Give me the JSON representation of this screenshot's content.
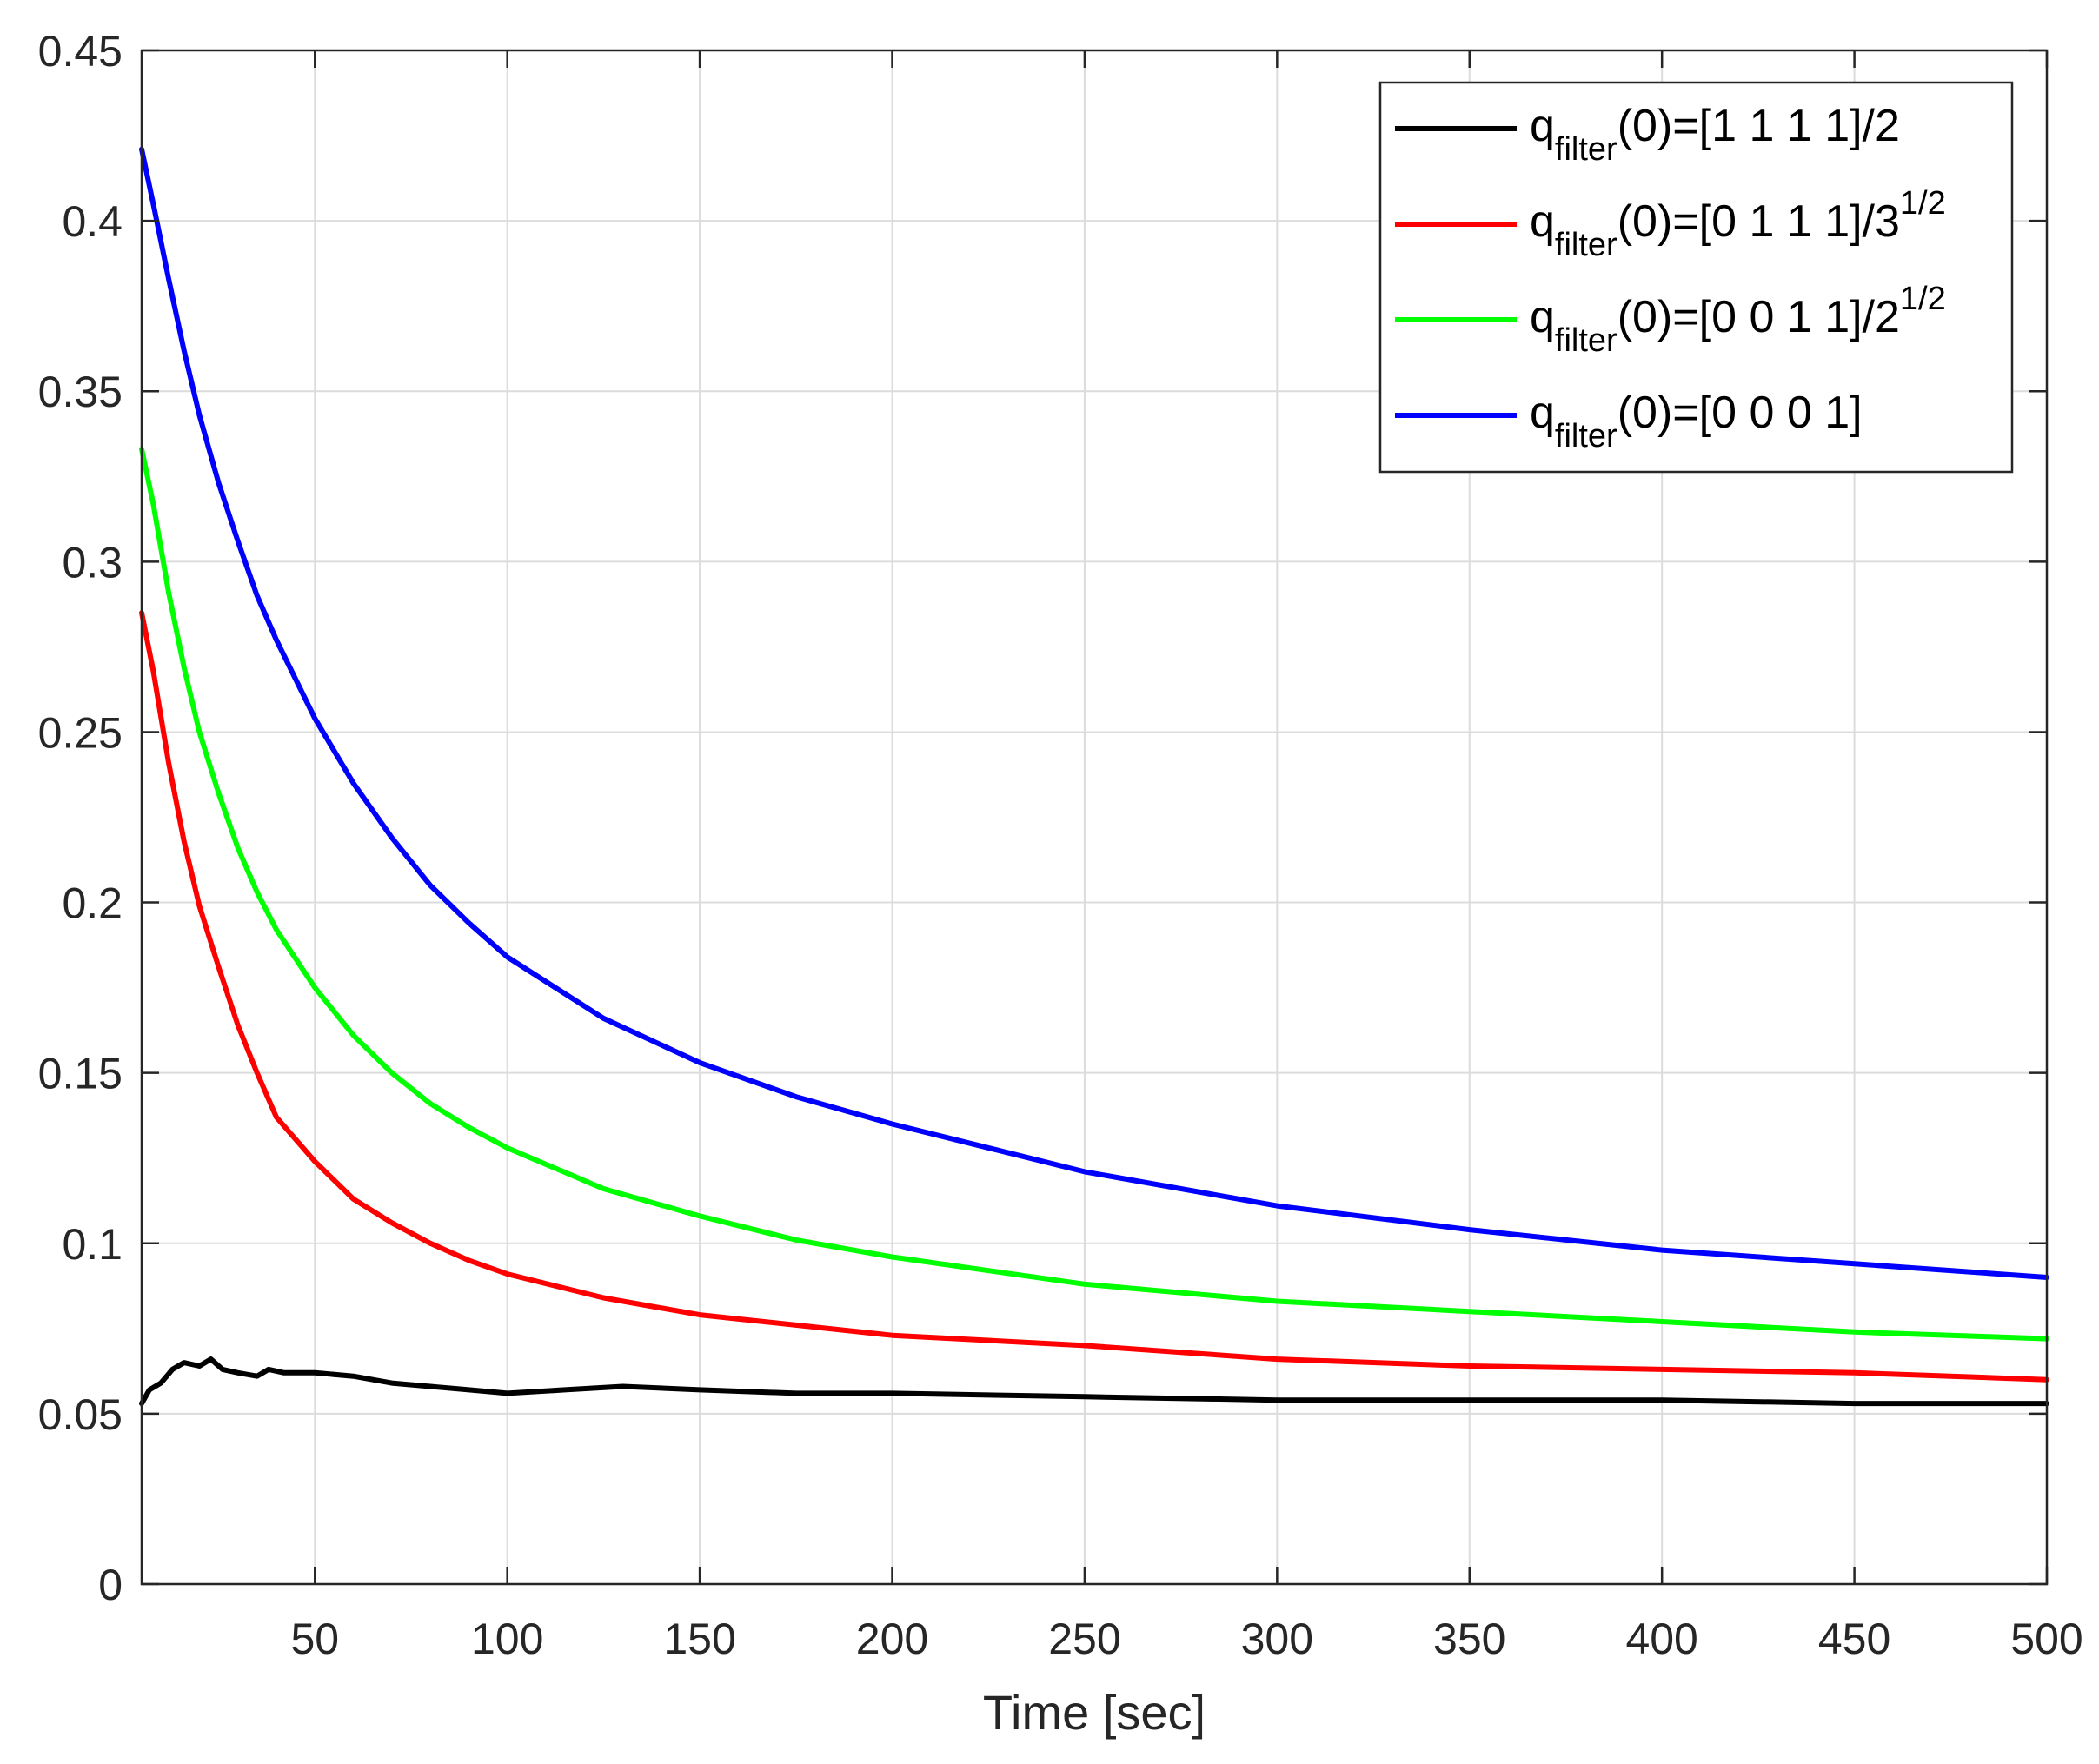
{
  "chart_data": {
    "type": "line",
    "title": "",
    "xlabel": "Time [sec]",
    "ylabel": "",
    "xlim": [
      5,
      500
    ],
    "ylim": [
      0,
      0.45
    ],
    "x_ticks": [
      50,
      100,
      150,
      200,
      250,
      300,
      350,
      400,
      450,
      500
    ],
    "y_ticks": [
      0,
      0.05,
      0.1,
      0.15,
      0.2,
      0.25,
      0.3,
      0.35,
      0.4,
      0.45
    ],
    "x_tick_labels": [
      "50",
      "100",
      "150",
      "200",
      "250",
      "300",
      "350",
      "400",
      "450",
      "500"
    ],
    "y_tick_labels": [
      "0",
      "0.05",
      "0.1",
      "0.15",
      "0.2",
      "0.25",
      "0.3",
      "0.35",
      "0.4",
      "0.45"
    ],
    "grid": true,
    "legend_position": "top-right",
    "series": [
      {
        "name": "q_filter(0)=[1 1 1 1]/2",
        "legend": {
          "base": "q",
          "sub": "filter",
          "rest": "(0)=[1 1 1 1]/2",
          "sup": ""
        },
        "color": "#000000",
        "x": [
          5,
          7,
          10,
          13,
          16,
          20,
          23,
          26,
          30,
          35,
          38,
          42,
          50,
          60,
          70,
          80,
          90,
          100,
          115,
          130,
          150,
          175,
          200,
          250,
          300,
          350,
          400,
          450,
          500
        ],
        "y": [
          0.053,
          0.057,
          0.059,
          0.063,
          0.065,
          0.064,
          0.066,
          0.063,
          0.062,
          0.061,
          0.063,
          0.062,
          0.062,
          0.061,
          0.059,
          0.058,
          0.057,
          0.056,
          0.057,
          0.058,
          0.057,
          0.056,
          0.056,
          0.055,
          0.054,
          0.054,
          0.054,
          0.053,
          0.053
        ]
      },
      {
        "name": "q_filter(0)=[0 1 1 1]/3^(1/2)",
        "legend": {
          "base": "q",
          "sub": "filter",
          "rest": "(0)=[0 1 1 1]/3",
          "sup": "1/2"
        },
        "color": "#ff0000",
        "x": [
          5,
          8,
          12,
          16,
          20,
          25,
          30,
          35,
          40,
          50,
          60,
          70,
          80,
          90,
          100,
          125,
          150,
          175,
          200,
          250,
          300,
          350,
          400,
          450,
          500
        ],
        "y": [
          0.285,
          0.268,
          0.241,
          0.218,
          0.199,
          0.181,
          0.164,
          0.15,
          0.137,
          0.124,
          0.113,
          0.106,
          0.1,
          0.095,
          0.091,
          0.084,
          0.079,
          0.076,
          0.073,
          0.07,
          0.066,
          0.064,
          0.063,
          0.062,
          0.06
        ]
      },
      {
        "name": "q_filter(0)=[0 0 1 1]/2^(1/2)",
        "legend": {
          "base": "q",
          "sub": "filter",
          "rest": "(0)=[0 0 1 1]/2",
          "sup": "1/2"
        },
        "color": "#00ff00",
        "x": [
          5,
          8,
          12,
          16,
          20,
          25,
          30,
          35,
          40,
          50,
          60,
          70,
          80,
          90,
          100,
          125,
          150,
          175,
          200,
          250,
          300,
          350,
          400,
          450,
          500
        ],
        "y": [
          0.333,
          0.317,
          0.291,
          0.269,
          0.25,
          0.232,
          0.216,
          0.203,
          0.192,
          0.175,
          0.161,
          0.15,
          0.141,
          0.134,
          0.128,
          0.116,
          0.108,
          0.101,
          0.096,
          0.088,
          0.083,
          0.08,
          0.077,
          0.074,
          0.072
        ]
      },
      {
        "name": "q_filter(0)=[0 0 0 1]",
        "legend": {
          "base": "q",
          "sub": "filter",
          "rest": "(0)=[0 0 0 1]",
          "sup": ""
        },
        "color": "#0000ff",
        "x": [
          5,
          8,
          12,
          16,
          20,
          25,
          30,
          35,
          40,
          50,
          60,
          70,
          80,
          90,
          100,
          125,
          150,
          175,
          200,
          250,
          300,
          350,
          400,
          450,
          500
        ],
        "y": [
          0.421,
          0.405,
          0.383,
          0.362,
          0.343,
          0.323,
          0.306,
          0.29,
          0.277,
          0.254,
          0.235,
          0.219,
          0.205,
          0.194,
          0.184,
          0.166,
          0.153,
          0.143,
          0.135,
          0.121,
          0.111,
          0.104,
          0.098,
          0.094,
          0.09
        ]
      }
    ]
  }
}
